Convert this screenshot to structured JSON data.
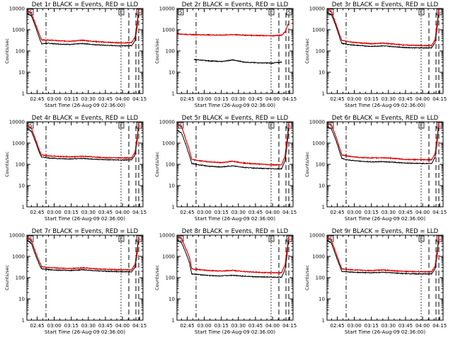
{
  "chart_data": [
    {
      "type": "line",
      "title": "Det 1r BLACK = Events, RED = LLD",
      "xlabel": "Start Time (26-Aug-09 02:36:00)",
      "ylabel": "Counts/sec",
      "yscale": "log",
      "ylim": [
        1,
        10000
      ],
      "xlim": [
        "02:36",
        "04:18"
      ],
      "xticks": [
        "02:45",
        "03:00",
        "03:15",
        "03:30",
        "03:45",
        "04:00",
        "04:15"
      ],
      "yticks": [
        "1",
        "10",
        "100",
        "1000",
        "10000"
      ],
      "markers": [
        "S",
        "E",
        "S"
      ],
      "series": [
        {
          "name": "Events",
          "color": "#000000",
          "x": [
            "02:36",
            "02:40",
            "02:44",
            "02:47",
            "02:49",
            "02:55",
            "03:05",
            "03:15",
            "03:25",
            "03:35",
            "03:45",
            "04:00",
            "04:08",
            "04:11",
            "04:13",
            "04:14"
          ],
          "values": [
            6000,
            4500,
            1200,
            400,
            220,
            230,
            210,
            205,
            225,
            200,
            185,
            175,
            180,
            300,
            1500,
            7000
          ]
        },
        {
          "name": "LLD",
          "color": "#e00000",
          "x": [
            "02:36",
            "02:40",
            "02:44",
            "02:47",
            "02:49",
            "02:55",
            "03:05",
            "03:15",
            "03:25",
            "03:35",
            "03:45",
            "04:00",
            "04:08",
            "04:11",
            "04:13",
            "04:14"
          ],
          "values": [
            8000,
            6000,
            1600,
            600,
            330,
            330,
            300,
            290,
            320,
            280,
            260,
            240,
            250,
            450,
            2500,
            9000
          ]
        }
      ]
    },
    {
      "type": "line",
      "title": "Det 2r BLACK = Events, RED = LLD",
      "xlabel": "Start Time (26-Aug-09 02:36:00)",
      "ylabel": "Counts/sec",
      "yscale": "log",
      "ylim": [
        1,
        10000
      ],
      "xlim": [
        "02:36",
        "04:18"
      ],
      "xticks": [
        "02:45",
        "03:00",
        "03:15",
        "03:30",
        "03:45",
        "04:00",
        "04:15"
      ],
      "yticks": [
        "1",
        "10",
        "100",
        "1000",
        "10000"
      ],
      "markers": [
        "S",
        "E",
        "S"
      ],
      "series": [
        {
          "name": "Events",
          "color": "#000000",
          "x": [
            "02:51",
            "02:55",
            "03:05",
            "03:15",
            "03:25",
            "03:35",
            "03:45",
            "04:00",
            "04:08"
          ],
          "values": [
            40,
            38,
            34,
            32,
            38,
            30,
            28,
            27,
            30
          ]
        },
        {
          "name": "LLD",
          "color": "#e00000",
          "x": [
            "02:36",
            "02:45",
            "02:55",
            "03:05",
            "03:15",
            "03:25",
            "03:35",
            "03:45",
            "04:00",
            "04:08",
            "04:11",
            "04:14"
          ],
          "values": [
            650,
            600,
            580,
            570,
            560,
            590,
            560,
            540,
            520,
            560,
            800,
            2000
          ]
        }
      ]
    },
    {
      "type": "line",
      "title": "Det 3r BLACK = Events, RED = LLD",
      "xlabel": "Start Time (26-Aug-09 02:36:00)",
      "ylabel": "Counts/sec",
      "yscale": "log",
      "ylim": [
        1,
        10000
      ],
      "xlim": [
        "02:36",
        "04:18"
      ],
      "xticks": [
        "02:45",
        "03:00",
        "03:15",
        "03:30",
        "03:45",
        "04:00",
        "04:15"
      ],
      "yticks": [
        "1",
        "10",
        "100",
        "1000",
        "10000"
      ],
      "markers": [
        "S",
        "E",
        "S"
      ],
      "series": [
        {
          "name": "Events",
          "color": "#000000",
          "x": [
            "02:36",
            "02:40",
            "02:44",
            "02:47",
            "02:49",
            "02:55",
            "03:05",
            "03:15",
            "03:25",
            "03:35",
            "03:45",
            "04:00",
            "04:08",
            "04:11",
            "04:13",
            "04:14"
          ],
          "values": [
            6500,
            5000,
            1400,
            450,
            230,
            200,
            180,
            165,
            175,
            160,
            145,
            140,
            140,
            250,
            1500,
            7000
          ]
        },
        {
          "name": "LLD",
          "color": "#e00000",
          "x": [
            "02:36",
            "02:40",
            "02:44",
            "02:47",
            "02:49",
            "02:55",
            "03:05",
            "03:15",
            "03:25",
            "03:35",
            "03:45",
            "04:00",
            "04:08",
            "04:11",
            "04:13",
            "04:14"
          ],
          "values": [
            9000,
            7000,
            1800,
            600,
            320,
            270,
            240,
            220,
            235,
            210,
            190,
            180,
            180,
            350,
            2500,
            9000
          ]
        }
      ]
    },
    {
      "type": "line",
      "title": "Det 4r BLACK = Events, RED = LLD",
      "xlabel": "Start Time (26-Aug-09 02:36:00)",
      "ylabel": "Counts/sec",
      "yscale": "log",
      "ylim": [
        1,
        10000
      ],
      "xlim": [
        "02:36",
        "04:18"
      ],
      "xticks": [
        "02:45",
        "03:00",
        "03:15",
        "03:30",
        "03:45",
        "04:00",
        "04:15"
      ],
      "yticks": [
        "1",
        "10",
        "100",
        "1000",
        "10000"
      ],
      "markers": [
        "S",
        "E",
        "S"
      ],
      "series": [
        {
          "name": "Events",
          "color": "#000000",
          "x": [
            "02:36",
            "02:40",
            "02:44",
            "02:47",
            "02:49",
            "02:55",
            "03:05",
            "03:15",
            "03:25",
            "03:35",
            "03:45",
            "04:00",
            "04:08",
            "04:11",
            "04:13",
            "04:14"
          ],
          "values": [
            5000,
            3500,
            1000,
            350,
            220,
            200,
            185,
            180,
            190,
            175,
            165,
            160,
            160,
            280,
            1400,
            6500
          ]
        },
        {
          "name": "LLD",
          "color": "#e00000",
          "x": [
            "02:36",
            "02:40",
            "02:44",
            "02:47",
            "02:49",
            "02:55",
            "03:05",
            "03:15",
            "03:25",
            "03:35",
            "03:45",
            "04:00",
            "04:08",
            "04:11",
            "04:13",
            "04:14"
          ],
          "values": [
            7000,
            5000,
            1300,
            450,
            280,
            250,
            235,
            225,
            240,
            220,
            205,
            200,
            200,
            380,
            2200,
            8500
          ]
        }
      ]
    },
    {
      "type": "line",
      "title": "Det 5r BLACK = Events, RED = LLD",
      "xlabel": "Start Time (26-Aug-09 02:36:00)",
      "ylabel": "Counts/sec",
      "yscale": "log",
      "ylim": [
        1,
        10000
      ],
      "xlim": [
        "02:36",
        "04:18"
      ],
      "xticks": [
        "02:45",
        "03:00",
        "03:15",
        "03:30",
        "03:45",
        "04:00",
        "04:15"
      ],
      "yticks": [
        "1",
        "10",
        "100",
        "1000",
        "10000"
      ],
      "markers": [
        "S",
        "E",
        "S"
      ],
      "series": [
        {
          "name": "Events",
          "color": "#000000",
          "x": [
            "02:36",
            "02:40",
            "02:44",
            "02:47",
            "02:49",
            "02:55",
            "03:05",
            "03:15",
            "03:25",
            "03:35",
            "03:45",
            "04:00",
            "04:08",
            "04:11",
            "04:13",
            "04:14"
          ],
          "values": [
            4000,
            3000,
            800,
            250,
            110,
            95,
            80,
            75,
            85,
            72,
            66,
            62,
            62,
            150,
            1000,
            5000
          ]
        },
        {
          "name": "LLD",
          "color": "#e00000",
          "x": [
            "02:36",
            "02:40",
            "02:44",
            "02:47",
            "02:49",
            "02:55",
            "03:05",
            "03:15",
            "03:25",
            "03:35",
            "03:45",
            "04:00",
            "04:08",
            "04:11",
            "04:13",
            "04:14"
          ],
          "values": [
            8000,
            6000,
            1400,
            450,
            170,
            150,
            130,
            120,
            140,
            115,
            105,
            95,
            95,
            250,
            2000,
            9000
          ]
        }
      ]
    },
    {
      "type": "line",
      "title": "Det 6r BLACK = Events, RED = LLD",
      "xlabel": "Start Time (26-Aug-09 02:36:00)",
      "ylabel": "Counts/sec",
      "yscale": "log",
      "ylim": [
        1,
        10000
      ],
      "xlim": [
        "02:36",
        "04:18"
      ],
      "xticks": [
        "02:45",
        "03:00",
        "03:15",
        "03:30",
        "03:45",
        "04:00",
        "04:15"
      ],
      "yticks": [
        "1",
        "10",
        "100",
        "1000",
        "10000"
      ],
      "markers": [
        "S",
        "E",
        "S"
      ],
      "series": [
        {
          "name": "Events",
          "color": "#000000",
          "x": [
            "02:36",
            "02:40",
            "02:44",
            "02:47",
            "02:49",
            "02:55",
            "03:05",
            "03:15",
            "03:25",
            "03:35",
            "03:45",
            "04:00",
            "04:08",
            "04:11",
            "04:13",
            "04:14"
          ],
          "values": [
            6000,
            4500,
            1300,
            400,
            190,
            160,
            140,
            130,
            135,
            125,
            115,
            110,
            110,
            220,
            1400,
            6500
          ]
        },
        {
          "name": "LLD",
          "color": "#e00000",
          "x": [
            "02:36",
            "02:40",
            "02:44",
            "02:47",
            "02:49",
            "02:55",
            "03:05",
            "03:15",
            "03:25",
            "03:35",
            "03:45",
            "04:00",
            "04:08",
            "04:11",
            "04:13",
            "04:14"
          ],
          "values": [
            9000,
            7000,
            1900,
            600,
            280,
            240,
            210,
            200,
            205,
            190,
            170,
            165,
            165,
            320,
            2400,
            9000
          ]
        }
      ]
    },
    {
      "type": "line",
      "title": "Det 7r BLACK = Events, RED = LLD",
      "xlabel": "Start Time (26-Aug-09 02:36:00)",
      "ylabel": "Counts/sec",
      "yscale": "log",
      "ylim": [
        1,
        10000
      ],
      "xlim": [
        "02:36",
        "04:18"
      ],
      "xticks": [
        "02:45",
        "03:00",
        "03:15",
        "03:30",
        "03:45",
        "04:00",
        "04:15"
      ],
      "yticks": [
        "1",
        "10",
        "100",
        "1000",
        "10000"
      ],
      "markers": [
        "S",
        "E",
        "S"
      ],
      "series": [
        {
          "name": "Events",
          "color": "#000000",
          "x": [
            "02:36",
            "02:40",
            "02:44",
            "02:47",
            "02:49",
            "02:55",
            "03:05",
            "03:15",
            "03:25",
            "03:35",
            "03:45",
            "04:00",
            "04:08",
            "04:11",
            "04:13",
            "04:14"
          ],
          "values": [
            6000,
            4000,
            1000,
            400,
            260,
            240,
            225,
            220,
            235,
            215,
            200,
            190,
            190,
            300,
            1500,
            6500
          ]
        },
        {
          "name": "LLD",
          "color": "#e00000",
          "x": [
            "02:36",
            "02:40",
            "02:44",
            "02:47",
            "02:49",
            "02:55",
            "03:05",
            "03:15",
            "03:25",
            "03:35",
            "03:45",
            "04:00",
            "04:08",
            "04:11",
            "04:13",
            "04:14"
          ],
          "values": [
            8000,
            5500,
            1400,
            550,
            330,
            300,
            280,
            270,
            290,
            265,
            245,
            235,
            235,
            420,
            2400,
            8500
          ]
        }
      ]
    },
    {
      "type": "line",
      "title": "Det 8r BLACK = Events, RED = LLD",
      "xlabel": "Start Time (26-Aug-09 02:36:00)",
      "ylabel": "Counts/sec",
      "yscale": "log",
      "ylim": [
        1,
        10000
      ],
      "xlim": [
        "02:36",
        "04:18"
      ],
      "xticks": [
        "02:45",
        "03:00",
        "03:15",
        "03:30",
        "03:45",
        "04:00",
        "04:15"
      ],
      "yticks": [
        "1",
        "10",
        "100",
        "1000",
        "10000"
      ],
      "markers": [
        "S",
        "E",
        "S"
      ],
      "series": [
        {
          "name": "Events",
          "color": "#000000",
          "x": [
            "02:36",
            "02:40",
            "02:44",
            "02:47",
            "02:49",
            "02:55",
            "03:05",
            "03:15",
            "03:25",
            "03:35",
            "03:45",
            "04:00",
            "04:08",
            "04:11",
            "04:13",
            "04:14"
          ],
          "values": [
            6000,
            4500,
            1400,
            500,
            150,
            140,
            125,
            120,
            130,
            118,
            110,
            105,
            105,
            250,
            1500,
            6500
          ]
        },
        {
          "name": "LLD",
          "color": "#e00000",
          "x": [
            "02:36",
            "02:40",
            "02:44",
            "02:47",
            "02:49",
            "02:55",
            "03:05",
            "03:15",
            "03:25",
            "03:35",
            "03:45",
            "04:00",
            "04:08",
            "04:11",
            "04:13",
            "04:14"
          ],
          "values": [
            9000,
            7000,
            2200,
            900,
            260,
            240,
            215,
            205,
            220,
            195,
            180,
            170,
            170,
            420,
            2600,
            9000
          ]
        }
      ]
    },
    {
      "type": "line",
      "title": "Det 9r BLACK = Events, RED = LLD",
      "xlabel": "Start Time (26-Aug-09 02:36:00)",
      "ylabel": "Counts/sec",
      "yscale": "log",
      "ylim": [
        1,
        10000
      ],
      "xlim": [
        "02:36",
        "04:18"
      ],
      "xticks": [
        "02:45",
        "03:00",
        "03:15",
        "03:30",
        "03:45",
        "04:00",
        "04:15"
      ],
      "yticks": [
        "1",
        "10",
        "100",
        "1000",
        "10000"
      ],
      "markers": [
        "S",
        "E",
        "S"
      ],
      "series": [
        {
          "name": "Events",
          "color": "#000000",
          "x": [
            "02:36",
            "02:40",
            "02:44",
            "02:47",
            "02:49",
            "02:55",
            "03:05",
            "03:15",
            "03:25",
            "03:35",
            "03:45",
            "04:00",
            "04:08",
            "04:11",
            "04:13",
            "04:14"
          ],
          "values": [
            6000,
            4000,
            1000,
            380,
            200,
            185,
            175,
            170,
            180,
            165,
            155,
            150,
            150,
            260,
            1400,
            6500
          ]
        },
        {
          "name": "LLD",
          "color": "#e00000",
          "x": [
            "02:36",
            "02:40",
            "02:44",
            "02:47",
            "02:49",
            "02:55",
            "03:05",
            "03:15",
            "03:25",
            "03:35",
            "03:45",
            "04:00",
            "04:08",
            "04:11",
            "04:13",
            "04:14"
          ],
          "values": [
            8000,
            5500,
            1400,
            500,
            260,
            240,
            225,
            215,
            230,
            210,
            195,
            190,
            190,
            360,
            2300,
            8500
          ]
        }
      ]
    }
  ]
}
